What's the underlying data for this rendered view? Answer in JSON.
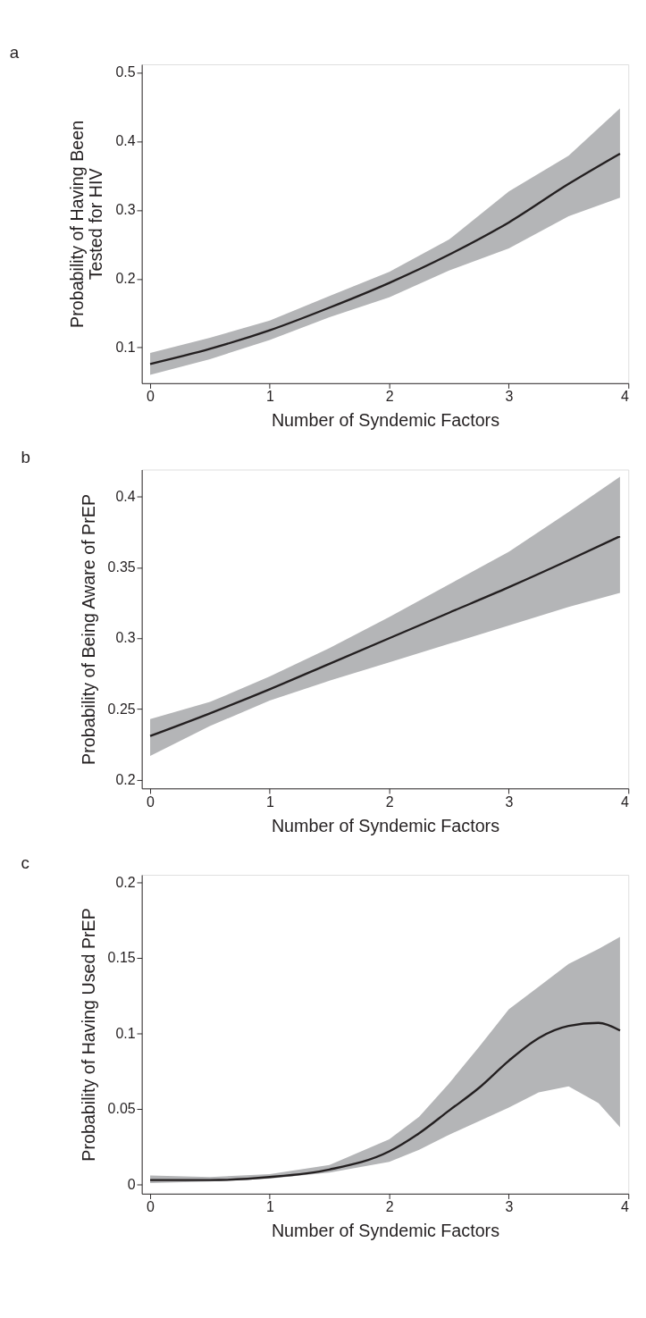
{
  "chart_data": [
    {
      "type": "line",
      "title": "a",
      "xlabel": "Number of Syndemic Factors",
      "ylabel": "Probability of Having Been\nTested for HIV",
      "x": [
        0,
        0.5,
        1,
        1.5,
        2,
        2.5,
        3,
        3.5,
        3.93
      ],
      "series": [
        {
          "color": "#231f20",
          "values": [
            0.076,
            0.098,
            0.125,
            0.158,
            0.194,
            0.235,
            0.282,
            0.338,
            0.382
          ],
          "lower": [
            0.06,
            0.083,
            0.111,
            0.144,
            0.173,
            0.212,
            0.244,
            0.291,
            0.318
          ],
          "upper": [
            0.092,
            0.114,
            0.139,
            0.175,
            0.21,
            0.257,
            0.327,
            0.379,
            0.448
          ]
        }
      ],
      "xlim": [
        -0.07,
        4.0
      ],
      "xticks": [
        0,
        1,
        2,
        3,
        4
      ],
      "ylim": [
        0.048,
        0.512
      ],
      "yticks": [
        0.1,
        0.2,
        0.3,
        0.4,
        0.5
      ],
      "grid": false
    },
    {
      "type": "line",
      "title": "b",
      "xlabel": "Number of Syndemic Factors",
      "ylabel": "Probability of Being Aware of PrEP",
      "x": [
        0,
        0.5,
        1,
        1.5,
        2,
        2.5,
        3,
        3.5,
        3.93
      ],
      "series": [
        {
          "color": "#231f20",
          "values": [
            0.231,
            0.247,
            0.264,
            0.282,
            0.3,
            0.318,
            0.336,
            0.355,
            0.372
          ],
          "lower": [
            0.217,
            0.238,
            0.256,
            0.27,
            0.283,
            0.296,
            0.309,
            0.322,
            0.332
          ],
          "upper": [
            0.243,
            0.255,
            0.273,
            0.293,
            0.315,
            0.338,
            0.361,
            0.389,
            0.414
          ]
        }
      ],
      "xlim": [
        -0.07,
        4.0
      ],
      "xticks": [
        0,
        1,
        2,
        3,
        4
      ],
      "ylim": [
        0.194,
        0.419
      ],
      "yticks": [
        0.2,
        0.25,
        0.3,
        0.35,
        0.4
      ],
      "grid": false
    },
    {
      "type": "line",
      "title": "c",
      "xlabel": "Number of Syndemic Factors",
      "ylabel": "Probability of Having Used PrEP",
      "x": [
        0,
        0.5,
        1,
        1.5,
        2,
        2.25,
        2.5,
        2.75,
        3,
        3.25,
        3.5,
        3.75,
        3.93
      ],
      "series": [
        {
          "color": "#231f20",
          "values": [
            0.003,
            0.003,
            0.005,
            0.01,
            0.022,
            0.034,
            0.049,
            0.064,
            0.082,
            0.097,
            0.105,
            0.107,
            0.102
          ],
          "lower": [
            0.001,
            0.002,
            0.004,
            0.008,
            0.015,
            0.023,
            0.033,
            0.042,
            0.051,
            0.061,
            0.065,
            0.054,
            0.038
          ],
          "upper": [
            0.006,
            0.005,
            0.007,
            0.013,
            0.03,
            0.045,
            0.067,
            0.091,
            0.116,
            0.131,
            0.146,
            0.156,
            0.164
          ]
        }
      ],
      "xlim": [
        -0.07,
        4.0
      ],
      "xticks": [
        0,
        1,
        2,
        3,
        4
      ],
      "ylim": [
        -0.006,
        0.205
      ],
      "yticks": [
        0,
        0.05,
        0.1,
        0.15,
        0.2
      ],
      "grid": false
    }
  ]
}
